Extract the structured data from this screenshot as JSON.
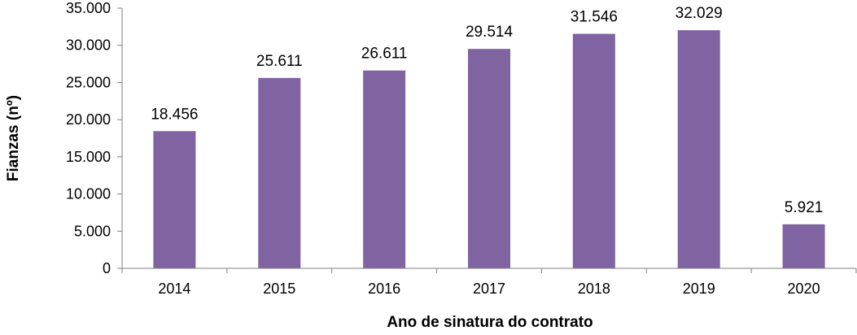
{
  "chart_data": {
    "type": "bar",
    "categories": [
      "2014",
      "2015",
      "2016",
      "2017",
      "2018",
      "2019",
      "2020"
    ],
    "values": [
      18456,
      25611,
      26611,
      29514,
      31546,
      32029,
      5921
    ],
    "data_labels": [
      "18.456",
      "25.611",
      "26.611",
      "29.514",
      "31.546",
      "32.029",
      "5.921"
    ],
    "title": "",
    "xlabel": "Ano de sinatura do contrato",
    "ylabel": "Fianzas (nº)",
    "ylim": [
      0,
      35000
    ],
    "yticks": [
      0,
      5000,
      10000,
      15000,
      20000,
      25000,
      30000,
      35000
    ],
    "ytick_labels": [
      "0",
      "5.000",
      "10.000",
      "15.000",
      "20.000",
      "25.000",
      "30.000",
      "35.000"
    ],
    "grid": false,
    "legend": "none",
    "bar_color": "#8064a2"
  }
}
